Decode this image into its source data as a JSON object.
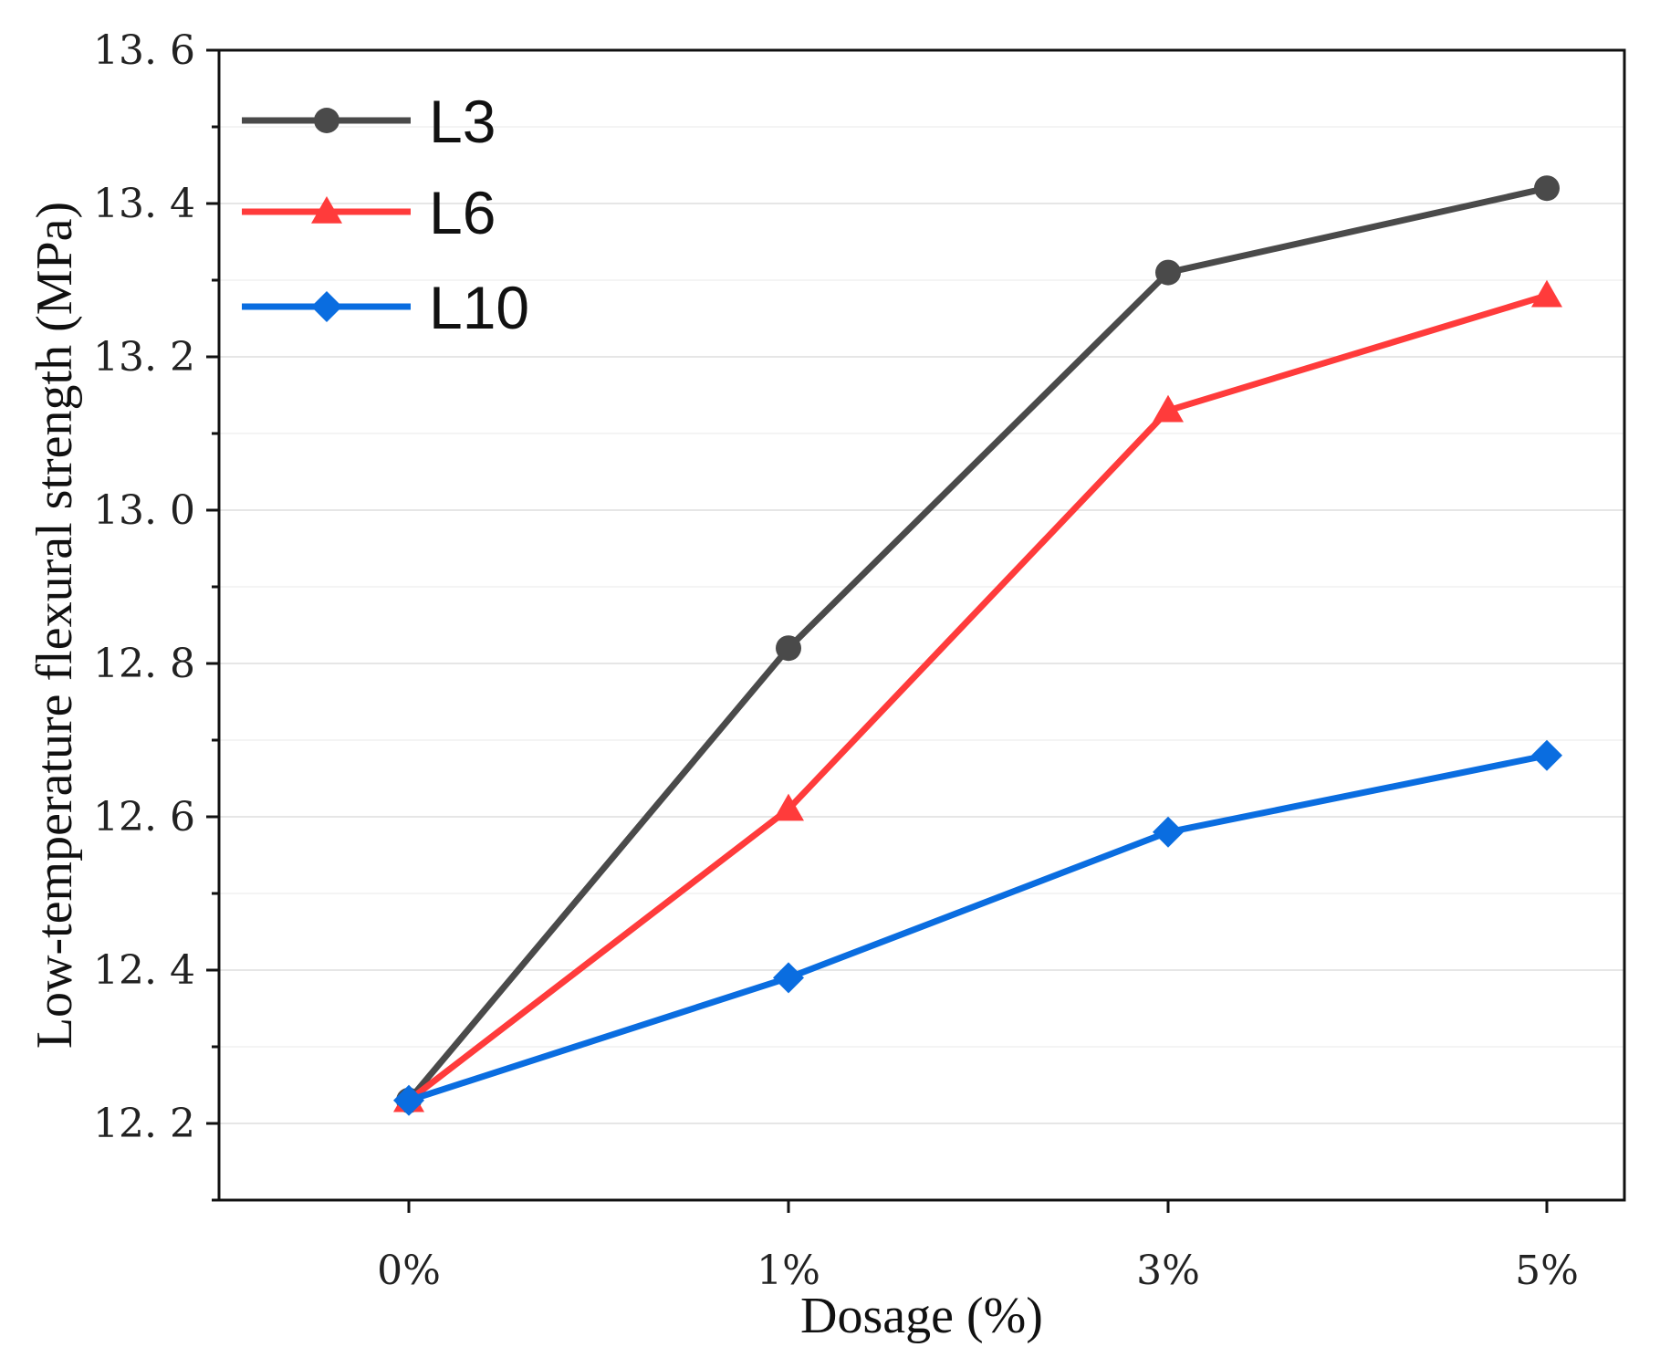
{
  "chart_data": {
    "type": "line",
    "title": "",
    "xlabel": "Dosage (%)",
    "ylabel": "Low-temperature flexural strength (MPa)",
    "categories": [
      "0%",
      "1%",
      "3%",
      "5%"
    ],
    "ylim": [
      12.1,
      13.6
    ],
    "yticks": [
      12.2,
      12.4,
      12.6,
      12.8,
      13.0,
      13.2,
      13.4,
      13.6
    ],
    "ytick_labels": [
      "12. 2",
      "12. 4",
      "12. 6",
      "12. 8",
      "13. 0",
      "13. 2",
      "13. 4",
      "13. 6"
    ],
    "grid": true,
    "legend_position": "top-left",
    "series": [
      {
        "name": "L3",
        "color": "#4a4a4a",
        "marker": "circle",
        "values": [
          12.23,
          12.82,
          13.31,
          13.42
        ]
      },
      {
        "name": "L6",
        "color": "#ff3b3b",
        "marker": "triangle",
        "values": [
          12.23,
          12.61,
          13.13,
          13.28
        ]
      },
      {
        "name": "L10",
        "color": "#0a6de0",
        "marker": "diamond",
        "values": [
          12.23,
          12.39,
          12.58,
          12.68
        ]
      }
    ]
  }
}
